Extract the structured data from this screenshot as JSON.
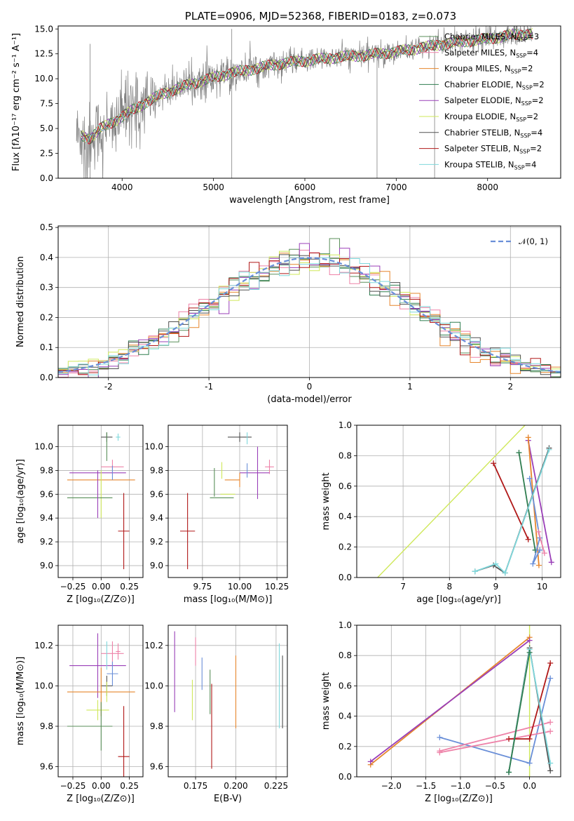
{
  "palette": [
    "#5a8f5a",
    "#ee82a8",
    "#e6862c",
    "#2f7d4f",
    "#9a3fb8",
    "#cfe85a",
    "#505050",
    "#b01818",
    "#7fd8dc",
    "#6a8fd8"
  ],
  "chart_data": [
    {
      "id": "spectrum",
      "type": "line",
      "title": "PLATE=0906, MJD=52368, FIBERID=0183, z=0.073",
      "xlabel": "wavelength [Angstrom, rest frame]",
      "ylabel": "Flux [fλ10⁻¹⁷ erg cm⁻² s⁻¹ A⁻¹]",
      "xlim": [
        3300,
        8800
      ],
      "ylim": [
        0,
        15.3
      ],
      "xticks": [
        4000,
        5000,
        6000,
        7000,
        8000
      ],
      "yticks": [
        0.0,
        2.5,
        5.0,
        7.5,
        10.0,
        12.5,
        15.0
      ],
      "grid": false,
      "legend_position": "top-right",
      "legend": [
        {
          "label": "Chabrier MILES, N",
          "sub": "SSP",
          "eq": "=3",
          "color": "#5a8f5a"
        },
        {
          "label": "Salpeter MILES, N",
          "sub": "SSP",
          "eq": "=4",
          "color": "#ee82a8"
        },
        {
          "label": "Kroupa MILES, N",
          "sub": "SSP",
          "eq": "=2",
          "color": "#e6862c"
        },
        {
          "label": "Chabrier ELODIE, N",
          "sub": "SSP",
          "eq": "=2",
          "color": "#2f7d4f"
        },
        {
          "label": "Salpeter ELODIE, N",
          "sub": "SSP",
          "eq": "=2",
          "color": "#9a3fb8"
        },
        {
          "label": "Kroupa ELODIE, N",
          "sub": "SSP",
          "eq": "=2",
          "color": "#cfe85a"
        },
        {
          "label": "Chabrier STELIB, N",
          "sub": "SSP",
          "eq": "=4",
          "color": "#505050"
        },
        {
          "label": "Salpeter STELIB, N",
          "sub": "SSP",
          "eq": "=2",
          "color": "#b01818"
        },
        {
          "label": "Kroupa STELIB, N",
          "sub": "SSP",
          "eq": "=4",
          "color": "#7fd8dc"
        }
      ],
      "continuum": {
        "x": [
          3550,
          3650,
          3750,
          3850,
          4000,
          4200,
          4400,
          4600,
          4800,
          5000,
          5200,
          5400,
          5600,
          5800,
          6000,
          6200,
          6400,
          6600,
          6800,
          7000,
          7200,
          7400,
          7600,
          7800,
          8000,
          8200,
          8400
        ],
        "y": [
          4.3,
          4.0,
          4.9,
          5.4,
          6.2,
          7.3,
          8.3,
          9.0,
          9.6,
          10.1,
          10.6,
          10.9,
          11.3,
          11.6,
          11.8,
          12.0,
          12.2,
          12.3,
          12.5,
          12.7,
          13.0,
          13.3,
          13.6,
          13.8,
          14.0,
          14.3,
          14.5
        ]
      },
      "model_xrange": [
        3550,
        8500
      ],
      "data_xrange": [
        3500,
        8480
      ]
    },
    {
      "id": "residuals",
      "type": "histogram",
      "xlabel": "(data-model)/error",
      "ylabel": "Normed distribution",
      "xlim": [
        -2.5,
        2.5
      ],
      "ylim": [
        0,
        0.505
      ],
      "xticks": [
        -2,
        -1,
        0,
        1,
        2
      ],
      "yticks": [
        0.0,
        0.1,
        0.2,
        0.3,
        0.4,
        0.5
      ],
      "grid": true,
      "legend_position": "top-right",
      "legend": [
        {
          "label": "𝒩(0, 1)",
          "color": "#6a8fd8"
        }
      ],
      "bin_width": 0.1,
      "noise_amplitude": 0.035
    },
    {
      "id": "age-vs-Z",
      "type": "errorbar",
      "xlabel": "Z [log₁₀(Z/Z⊙)]",
      "ylabel": "age  [log₁₀(age/yr)]",
      "xlim": [
        -0.38,
        0.37
      ],
      "ylim": [
        8.9,
        10.18
      ],
      "xticks": [
        -0.25,
        0.0,
        0.25
      ],
      "xticklabels": [
        "−0.25",
        "0.00",
        "0.25"
      ],
      "yticks": [
        9.0,
        9.2,
        9.4,
        9.6,
        9.8,
        10.0
      ],
      "grid": true,
      "points": [
        {
          "x": 0.05,
          "y": 10.08,
          "xerr": 0.05,
          "yerr": 0.04,
          "color": "#505050"
        },
        {
          "x": 0.15,
          "y": 10.08,
          "xerr": 0.02,
          "yerr": 0.03,
          "color": "#7fd8dc"
        },
        {
          "x": 0.05,
          "y": 10.0,
          "xerr": 0.0,
          "yerr": 0.12,
          "color": "#5a8f5a"
        },
        {
          "x": 0.1,
          "y": 9.83,
          "xerr": 0.1,
          "yerr": 0.06,
          "color": "#ee82a8"
        },
        {
          "x": -0.03,
          "y": 9.78,
          "xerr": 0.25,
          "yerr": 0.0,
          "color": "#9a3fb8"
        },
        {
          "x": 0.0,
          "y": 9.72,
          "xerr": 0.3,
          "yerr": 0.0,
          "color": "#e6862c"
        },
        {
          "x": 0.1,
          "y": 9.78,
          "xerr": 0.0,
          "yerr": 0.06,
          "color": "#6a8fd8"
        },
        {
          "x": 0.0,
          "y": 9.6,
          "xerr": 0.0,
          "yerr": 0.2,
          "color": "#cfe85a"
        },
        {
          "x": -0.1,
          "y": 9.57,
          "xerr": 0.2,
          "yerr": 0.0,
          "color": "#5a8f5a"
        },
        {
          "x": 0.2,
          "y": 9.29,
          "xerr": 0.05,
          "yerr": 0.32,
          "color": "#b01818"
        },
        {
          "x": -0.03,
          "y": 9.6,
          "xerr": 0.0,
          "yerr": 0.2,
          "color": "#9a3fb8"
        }
      ]
    },
    {
      "id": "age-vs-mass",
      "type": "errorbar",
      "xlabel": "mass [log₁₀(M/M⊙)]",
      "ylabel": "",
      "xlim": [
        9.52,
        10.32
      ],
      "ylim": [
        8.9,
        10.18
      ],
      "xticks": [
        9.75,
        10.0,
        10.25
      ],
      "xticklabels": [
        "9.75",
        "10.00",
        "10.25"
      ],
      "yticks": [
        9.0,
        9.2,
        9.4,
        9.6,
        9.8,
        10.0
      ],
      "grid": true,
      "points": [
        {
          "x": 10.0,
          "y": 10.08,
          "xerr": 0.08,
          "yerr": 0.04,
          "color": "#505050"
        },
        {
          "x": 10.05,
          "y": 10.07,
          "xerr": 0.0,
          "yerr": 0.05,
          "color": "#7fd8dc"
        },
        {
          "x": 10.2,
          "y": 9.83,
          "xerr": 0.03,
          "yerr": 0.06,
          "color": "#ee82a8"
        },
        {
          "x": 10.1,
          "y": 9.78,
          "xerr": 0.1,
          "yerr": 0.0,
          "color": "#9a3fb8"
        },
        {
          "x": 10.12,
          "y": 9.78,
          "xerr": 0.0,
          "yerr": 0.22,
          "color": "#9a3fb8"
        },
        {
          "x": 9.95,
          "y": 9.72,
          "xerr": 0.05,
          "yerr": 0.0,
          "color": "#e6862c"
        },
        {
          "x": 10.0,
          "y": 9.72,
          "xerr": 0.0,
          "yerr": 0.06,
          "color": "#e6862c"
        },
        {
          "x": 10.05,
          "y": 9.8,
          "xerr": 0.0,
          "yerr": 0.06,
          "color": "#6a8fd8"
        },
        {
          "x": 9.88,
          "y": 9.8,
          "xerr": 0.0,
          "yerr": 0.07,
          "color": "#cfe85a"
        },
        {
          "x": 9.83,
          "y": 9.7,
          "xerr": 0.0,
          "yerr": 0.12,
          "color": "#5a8f5a"
        },
        {
          "x": 9.88,
          "y": 9.57,
          "xerr": 0.08,
          "yerr": 0.0,
          "color": "#5a8f5a"
        },
        {
          "x": 9.92,
          "y": 9.6,
          "xerr": 0.05,
          "yerr": 0.0,
          "color": "#cfe85a"
        },
        {
          "x": 9.65,
          "y": 9.29,
          "xerr": 0.05,
          "yerr": 0.32,
          "color": "#b01818"
        }
      ]
    },
    {
      "id": "weight-vs-age",
      "type": "line",
      "xlabel": "age  [log₁₀(age/yr)]",
      "ylabel": "mass weight",
      "xlim": [
        6.0,
        10.4
      ],
      "ylim": [
        0,
        1
      ],
      "xticks": [
        7,
        8,
        9,
        10
      ],
      "yticks": [
        0.0,
        0.2,
        0.4,
        0.6,
        0.8,
        1.0
      ],
      "grid": true,
      "series": [
        {
          "color": "#cfe85a",
          "x": [
            6.45,
            9.63
          ],
          "y": [
            0.0,
            1.0
          ],
          "markers": false
        },
        {
          "color": "#b01818",
          "x": [
            8.95,
            9.7
          ],
          "y": [
            0.75,
            0.25
          ],
          "markers": true
        },
        {
          "color": "#2f7d4f",
          "x": [
            9.5,
            9.85
          ],
          "y": [
            0.82,
            0.18
          ],
          "markers": true
        },
        {
          "color": "#9a3fb8",
          "x": [
            9.7,
            10.2
          ],
          "y": [
            0.9,
            0.1
          ],
          "markers": true
        },
        {
          "color": "#e6862c",
          "x": [
            9.7,
            9.93
          ],
          "y": [
            0.92,
            0.08
          ],
          "markers": true
        },
        {
          "color": "#6a8fd8",
          "x": [
            9.73,
            9.95,
            9.8,
            9.95
          ],
          "y": [
            0.65,
            0.26,
            0.09,
            0.18
          ],
          "markers": true
        },
        {
          "color": "#ee82a8",
          "x": [
            9.92,
            10.05
          ],
          "y": [
            0.3,
            0.16
          ],
          "markers": true
        },
        {
          "color": "#505050",
          "x": [
            8.55,
            8.95,
            9.2,
            10.15
          ],
          "y": [
            0.04,
            0.08,
            0.03,
            0.85
          ],
          "markers": true
        },
        {
          "color": "#7fd8dc",
          "x": [
            8.55,
            9.0,
            9.2,
            10.15
          ],
          "y": [
            0.04,
            0.09,
            0.03,
            0.84
          ],
          "markers": true
        }
      ]
    },
    {
      "id": "mass-vs-Z",
      "type": "errorbar",
      "xlabel": "Z [log₁₀(Z/Z⊙)]",
      "ylabel": "mass [log₁₀(M/M⊙)]",
      "xlim": [
        -0.38,
        0.37
      ],
      "ylim": [
        9.55,
        10.3
      ],
      "xticks": [
        -0.25,
        0.0,
        0.25
      ],
      "xticklabels": [
        "−0.25",
        "0.00",
        "0.25"
      ],
      "yticks": [
        9.6,
        9.8,
        10.0,
        10.2
      ],
      "grid": true,
      "points": [
        {
          "x": 0.15,
          "y": 10.17,
          "xerr": 0.02,
          "yerr": 0.04,
          "color": "#ee82a8"
        },
        {
          "x": -0.03,
          "y": 10.1,
          "xerr": 0.25,
          "yerr": 0.16,
          "color": "#9a3fb8"
        },
        {
          "x": 0.1,
          "y": 10.16,
          "xerr": 0.1,
          "yerr": 0.06,
          "color": "#ee82a8"
        },
        {
          "x": 0.05,
          "y": 10.15,
          "xerr": 0.0,
          "yerr": 0.07,
          "color": "#7fd8dc"
        },
        {
          "x": 0.1,
          "y": 10.06,
          "xerr": 0.05,
          "yerr": 0.06,
          "color": "#6a8fd8"
        },
        {
          "x": 0.05,
          "y": 10.0,
          "xerr": 0.05,
          "yerr": 0.05,
          "color": "#505050"
        },
        {
          "x": 0.0,
          "y": 9.97,
          "xerr": 0.3,
          "yerr": 0.12,
          "color": "#e6862c"
        },
        {
          "x": -0.03,
          "y": 9.88,
          "xerr": 0.1,
          "yerr": 0.05,
          "color": "#cfe85a"
        },
        {
          "x": 0.05,
          "y": 9.97,
          "xerr": 0.0,
          "yerr": 0.05,
          "color": "#cfe85a"
        },
        {
          "x": -0.1,
          "y": 9.8,
          "xerr": 0.2,
          "yerr": 0.0,
          "color": "#5a8f5a"
        },
        {
          "x": 0.0,
          "y": 9.8,
          "xerr": 0.0,
          "yerr": 0.12,
          "color": "#5a8f5a"
        },
        {
          "x": 0.2,
          "y": 9.65,
          "xerr": 0.05,
          "yerr": 0.25,
          "color": "#b01818"
        }
      ]
    },
    {
      "id": "mass-vs-EBV",
      "type": "errorbar",
      "xlabel": "E(B-V)",
      "ylabel": "",
      "xlim": [
        0.158,
        0.232
      ],
      "ylim": [
        9.55,
        10.3
      ],
      "xticks": [
        0.175,
        0.2,
        0.225
      ],
      "xticklabels": [
        "0.175",
        "0.200",
        "0.225"
      ],
      "yticks": [
        9.6,
        9.8,
        10.0,
        10.2
      ],
      "grid": true,
      "points": [
        {
          "x": 0.162,
          "y": 10.07,
          "xerr": 0.0,
          "yerr": 0.2,
          "color": "#9a3fb8"
        },
        {
          "x": 0.175,
          "y": 10.17,
          "xerr": 0.0,
          "yerr": 0.07,
          "color": "#ee82a8"
        },
        {
          "x": 0.173,
          "y": 9.93,
          "xerr": 0.0,
          "yerr": 0.1,
          "color": "#cfe85a"
        },
        {
          "x": 0.179,
          "y": 10.06,
          "xerr": 0.0,
          "yerr": 0.08,
          "color": "#6a8fd8"
        },
        {
          "x": 0.184,
          "y": 9.97,
          "xerr": 0.0,
          "yerr": 0.11,
          "color": "#5a8f5a"
        },
        {
          "x": 0.185,
          "y": 9.8,
          "xerr": 0.0,
          "yerr": 0.21,
          "color": "#b01818"
        },
        {
          "x": 0.2,
          "y": 9.97,
          "xerr": 0.0,
          "yerr": 0.18,
          "color": "#e6862c"
        },
        {
          "x": 0.227,
          "y": 10.0,
          "xerr": 0.0,
          "yerr": 0.21,
          "color": "#7fd8dc"
        },
        {
          "x": 0.229,
          "y": 9.97,
          "xerr": 0.0,
          "yerr": 0.18,
          "color": "#505050"
        }
      ]
    },
    {
      "id": "weight-vs-Z",
      "type": "line",
      "xlabel": "Z [log₁₀(Z/Z⊙)]",
      "ylabel": "mass weight",
      "xlim": [
        -2.5,
        0.45
      ],
      "ylim": [
        0,
        1
      ],
      "xticks": [
        -2.0,
        -1.5,
        -1.0,
        -0.5,
        0.0
      ],
      "xticklabels": [
        "−2.0",
        "−1.5",
        "−1.0",
        "−0.5",
        "0.0"
      ],
      "yticks": [
        0.0,
        0.2,
        0.4,
        0.6,
        0.8,
        1.0
      ],
      "grid": true,
      "series": [
        {
          "color": "#cfe85a",
          "x": [
            0.0,
            0.0
          ],
          "y": [
            0.0,
            1.0
          ],
          "markers": false
        },
        {
          "color": "#e6862c",
          "x": [
            -2.3,
            0.0
          ],
          "y": [
            0.08,
            0.92
          ],
          "markers": true
        },
        {
          "color": "#9a3fb8",
          "x": [
            -2.3,
            0.0
          ],
          "y": [
            0.1,
            0.9
          ],
          "markers": true
        },
        {
          "color": "#6a8fd8",
          "x": [
            -1.3,
            0.0,
            0.3
          ],
          "y": [
            0.26,
            0.09,
            0.65
          ],
          "markers": true
        },
        {
          "color": "#ee82a8",
          "x": [
            -1.3,
            0.3
          ],
          "y": [
            0.16,
            0.3
          ],
          "markers": true
        },
        {
          "color": "#ee82a8",
          "x": [
            -1.3,
            0.3
          ],
          "y": [
            0.17,
            0.36
          ],
          "markers": true
        },
        {
          "color": "#b01818",
          "x": [
            -0.3,
            0.0,
            0.3
          ],
          "y": [
            0.25,
            0.25,
            0.75
          ],
          "markers": true
        },
        {
          "color": "#505050",
          "x": [
            -0.3,
            0.0,
            0.3
          ],
          "y": [
            0.03,
            0.85,
            0.04
          ],
          "markers": true
        },
        {
          "color": "#7fd8dc",
          "x": [
            -0.3,
            0.0,
            0.3
          ],
          "y": [
            0.03,
            0.84,
            0.09
          ],
          "markers": true
        },
        {
          "color": "#2f7d4f",
          "x": [
            -0.3,
            0.0
          ],
          "y": [
            0.03,
            0.82
          ],
          "markers": true
        }
      ]
    }
  ]
}
